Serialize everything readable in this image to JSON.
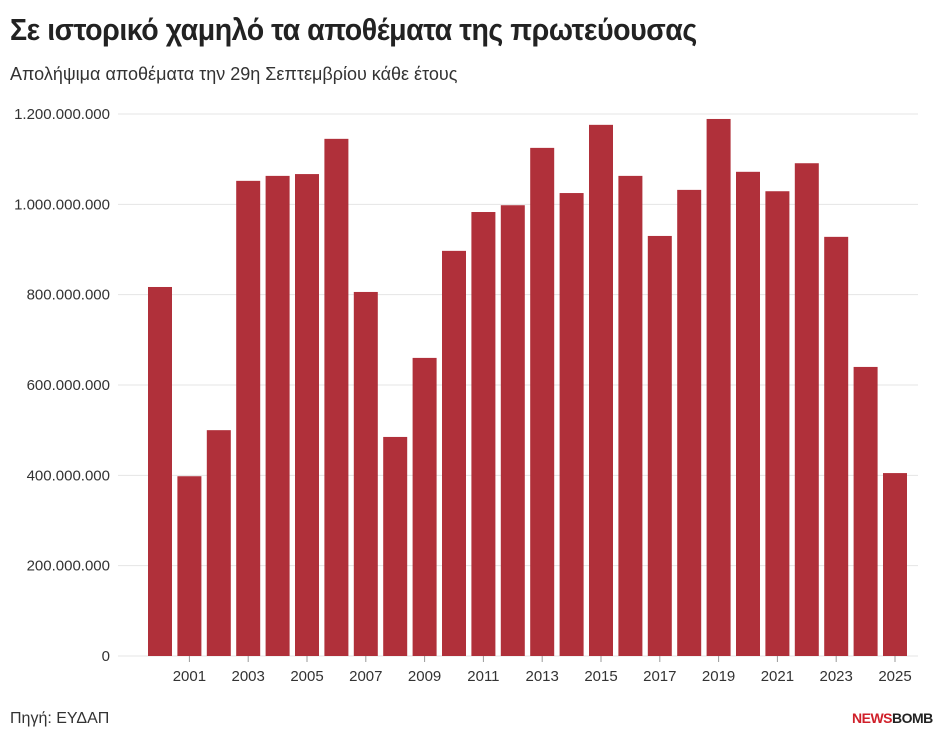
{
  "chart_data": {
    "type": "bar",
    "title": "Σε ιστορικό χαμηλό τα αποθέματα της πρωτεύουσας",
    "subtitle": "Απολήψιμα αποθέματα την 29η Σεπτεμβρίου κάθε έτους",
    "xlabel": "",
    "ylabel": "",
    "ylim": [
      0,
      1200000000
    ],
    "yticks": [
      0,
      200000000,
      400000000,
      600000000,
      800000000,
      1000000000,
      1200000000
    ],
    "ytick_labels": [
      "0",
      "200.000.000",
      "400.000.000",
      "600.000.000",
      "800.000.000",
      "1.000.000.000",
      "1.200.000.000"
    ],
    "categories": [
      2000,
      2001,
      2002,
      2003,
      2004,
      2005,
      2006,
      2007,
      2008,
      2009,
      2010,
      2011,
      2012,
      2013,
      2014,
      2015,
      2016,
      2017,
      2018,
      2019,
      2020,
      2021,
      2022,
      2023,
      2024,
      2025
    ],
    "xtick_labels": [
      "2001",
      "2003",
      "2005",
      "2007",
      "2009",
      "2011",
      "2013",
      "2015",
      "2017",
      "2019",
      "2021",
      "2023",
      "2025"
    ],
    "values": [
      817000000,
      398000000,
      500000000,
      1052000000,
      1063000000,
      1067000000,
      1145000000,
      806000000,
      485000000,
      660000000,
      897000000,
      983000000,
      998000000,
      1125000000,
      1025000000,
      1176000000,
      1063000000,
      930000000,
      1032000000,
      1189000000,
      1072000000,
      1029000000,
      1091000000,
      928000000,
      640000000,
      405000000
    ],
    "bar_color": "#b0303a",
    "grid": true
  },
  "source": "Πηγή: ΕΥΔΑΠ",
  "logo": {
    "part1": "NEWS",
    "part2": "BOMB"
  }
}
